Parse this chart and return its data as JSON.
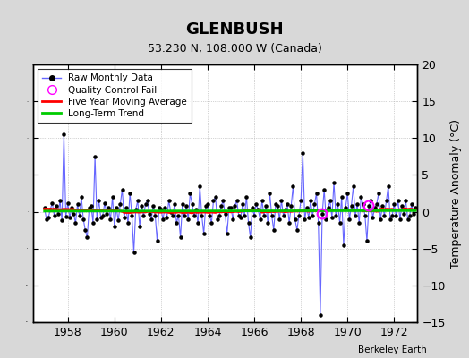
{
  "title": "GLENBUSH",
  "subtitle": "53.230 N, 108.000 W (Canada)",
  "ylabel": "Temperature Anomaly (°C)",
  "watermark": "Berkeley Earth",
  "xlim": [
    1956.5,
    1973.0
  ],
  "ylim": [
    -15,
    20
  ],
  "yticks": [
    -15,
    -10,
    -5,
    0,
    5,
    10,
    15,
    20
  ],
  "xticks": [
    1958,
    1960,
    1962,
    1964,
    1966,
    1968,
    1970,
    1972
  ],
  "bg_color": "#d8d8d8",
  "plot_bg": "#ffffff",
  "raw_color": "#6666ff",
  "dot_color": "#000000",
  "ma_color": "#ff0000",
  "trend_color": "#00cc00",
  "qc_color": "#ff00ff",
  "raw_monthly": [
    0.5,
    -1.0,
    -0.8,
    0.3,
    1.2,
    -0.5,
    0.8,
    -0.3,
    1.5,
    -1.2,
    10.5,
    -0.7,
    1.2,
    -0.8,
    0.5,
    -0.3,
    -1.5,
    1.0,
    -0.5,
    2.0,
    -1.0,
    -2.5,
    -3.5,
    0.5,
    0.8,
    -1.5,
    7.5,
    -1.0,
    1.5,
    -0.8,
    -0.5,
    1.2,
    -0.3,
    0.5,
    -1.0,
    2.0,
    -2.0,
    0.5,
    -1.2,
    1.0,
    3.0,
    -0.8,
    0.5,
    -1.5,
    2.5,
    -0.5,
    -5.5,
    0.3,
    1.5,
    -2.0,
    0.8,
    -0.5,
    1.0,
    1.5,
    -0.3,
    -1.0,
    0.8,
    -0.5,
    -4.0,
    0.5,
    0.3,
    -1.0,
    0.5,
    -0.8,
    1.5,
    0.0,
    -0.5,
    1.0,
    -1.5,
    -0.5,
    -3.5,
    1.0,
    -0.5,
    0.8,
    -1.0,
    2.5,
    1.0,
    -0.5,
    0.3,
    -1.5,
    3.5,
    -0.5,
    -3.0,
    0.8,
    1.0,
    -0.5,
    -1.5,
    1.5,
    2.0,
    -1.0,
    -0.5,
    0.8,
    1.5,
    -0.3,
    -3.0,
    0.5,
    0.5,
    -1.0,
    0.8,
    1.5,
    -0.5,
    -0.8,
    1.0,
    -0.5,
    2.0,
    -1.5,
    -3.5,
    0.5,
    -0.5,
    1.0,
    0.3,
    -1.0,
    1.5,
    -0.5,
    0.8,
    -1.5,
    2.5,
    -0.5,
    -2.5,
    1.0,
    0.8,
    -1.0,
    1.5,
    -0.5,
    0.3,
    1.0,
    -1.5,
    0.8,
    3.5,
    -1.0,
    -2.5,
    -0.5,
    1.5,
    8.0,
    -1.0,
    0.5,
    -0.8,
    1.5,
    -0.5,
    1.0,
    2.5,
    -1.5,
    -14.0,
    -0.3,
    3.0,
    -1.0,
    0.5,
    1.5,
    -0.8,
    4.0,
    -0.5,
    1.0,
    -1.5,
    2.0,
    -4.5,
    0.5,
    2.5,
    -1.0,
    0.8,
    3.5,
    -0.5,
    1.0,
    -1.5,
    2.0,
    1.0,
    -0.5,
    -4.0,
    0.8,
    1.5,
    -0.8,
    0.5,
    1.0,
    2.5,
    -1.0,
    0.8,
    -0.5,
    1.5,
    3.5,
    -1.0,
    -0.5,
    1.0,
    -0.5,
    1.5,
    -1.0,
    0.8,
    -0.3,
    1.5,
    -1.0,
    -0.5,
    1.0,
    -0.3,
    0.5
  ],
  "qc_fail_indices": [
    143,
    167
  ],
  "start_year": 1957,
  "start_month": 1
}
